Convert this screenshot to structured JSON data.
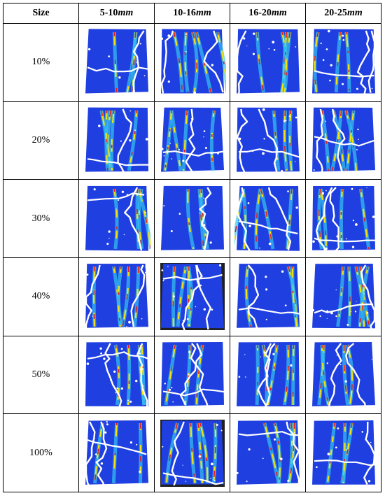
{
  "table": {
    "corner": "Size",
    "columns": [
      {
        "range": "5-10",
        "unit": "mm"
      },
      {
        "range": "10-16",
        "unit": "mm"
      },
      {
        "range": "16-20",
        "unit": "mm"
      },
      {
        "range": "20-25",
        "unit": "mm"
      }
    ],
    "rows": [
      {
        "label": "10%",
        "dark": [
          false,
          false,
          false,
          false
        ]
      },
      {
        "label": "20%",
        "dark": [
          false,
          false,
          false,
          false
        ]
      },
      {
        "label": "30%",
        "dark": [
          false,
          false,
          false,
          false
        ]
      },
      {
        "label": "40%",
        "dark": [
          false,
          true,
          false,
          false
        ]
      },
      {
        "label": "50%",
        "dark": [
          false,
          false,
          false,
          false
        ]
      },
      {
        "label": "100%",
        "dark": [
          false,
          true,
          false,
          false
        ]
      }
    ]
  },
  "colors": {
    "field": "#1f3fe0",
    "crack": "#ffffff",
    "hot1": "#35c4f0",
    "hot2": "#f2e20c",
    "hot3": "#e51c1c",
    "dark_frame": "#202020"
  }
}
